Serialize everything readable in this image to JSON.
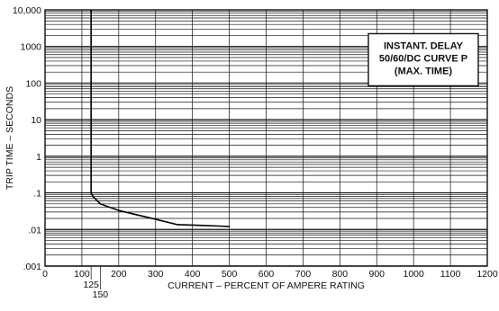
{
  "chart_data": {
    "type": "line",
    "title_box": [
      "INSTANT. DELAY",
      "50/60/DC CURVE P",
      "(MAX. TIME)"
    ],
    "xlabel": "CURRENT – PERCENT OF AMPERE RATING",
    "ylabel": "TRIP TIME – SECONDS",
    "x_scale": "linear",
    "y_scale": "log",
    "xlim": [
      0,
      1200
    ],
    "ylim": [
      0.001,
      10000
    ],
    "x_ticks": [
      0,
      100,
      200,
      300,
      400,
      500,
      600,
      700,
      800,
      900,
      1000,
      1100,
      1200
    ],
    "x_tick_labels": [
      "0",
      "100",
      "200",
      "300",
      "400",
      "500",
      "600",
      "700",
      "800",
      "900",
      "1000",
      "1100",
      "1200"
    ],
    "x_extra_ticks": [
      125,
      150
    ],
    "x_extra_tick_labels": [
      "125",
      "150"
    ],
    "y_ticks": [
      0.001,
      0.01,
      0.1,
      1,
      10,
      100,
      1000,
      10000
    ],
    "y_tick_labels": [
      ".001",
      ".01",
      ".1",
      "1",
      "10",
      "100",
      "1000",
      "10,000"
    ],
    "grid": true,
    "legend": "none",
    "series": [
      {
        "x": [
          125,
          125,
          125,
          130,
          150,
          200,
          250,
          300,
          360,
          420,
          480,
          500
        ],
        "y": [
          10000,
          1000,
          0.1,
          0.08,
          0.05,
          0.033,
          0.025,
          0.019,
          0.0135,
          0.013,
          0.0123,
          0.012
        ]
      }
    ]
  }
}
